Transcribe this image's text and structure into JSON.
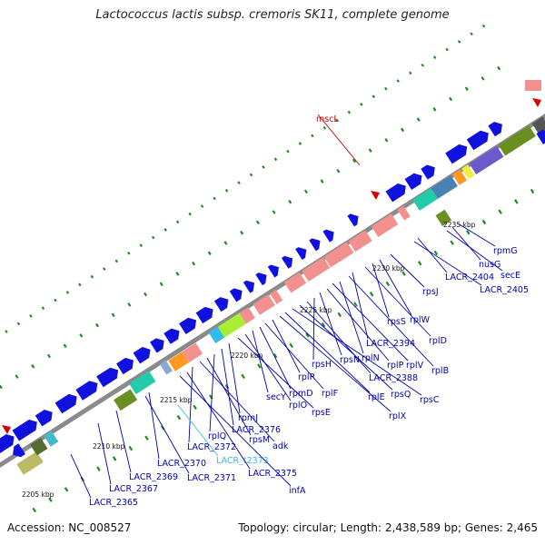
{
  "title": "Lactococcus lactis subsp. cremoris SK11, complete genome",
  "accession": "Accession: NC_008527",
  "summary": "Topology: circular; Length: 2,438,589 bp; Genes: 2,465",
  "ticks": [
    "2205 kbp",
    "2210 kbp",
    "2215 kbp",
    "2220 kbp",
    "2225 kbp",
    "2230 kbp",
    "2235 kbp"
  ],
  "gene_labels": [
    {
      "text": "mscL",
      "color": "#cc0000"
    },
    {
      "text": "rpmG",
      "color": "#0000aa"
    },
    {
      "text": "nusG",
      "color": "#0000aa"
    },
    {
      "text": "secE",
      "color": "#0000aa"
    },
    {
      "text": "LACR_2404",
      "color": "#0000aa"
    },
    {
      "text": "LACR_2405",
      "color": "#0000aa"
    },
    {
      "text": "rpsJ",
      "color": "#0000aa"
    },
    {
      "text": "rplW",
      "color": "#0000aa"
    },
    {
      "text": "rpsS",
      "color": "#0000aa"
    },
    {
      "text": "rplD",
      "color": "#0000aa"
    },
    {
      "text": "LACR_2394",
      "color": "#0000aa"
    },
    {
      "text": "rplB",
      "color": "#0000aa"
    },
    {
      "text": "rplN",
      "color": "#0000aa"
    },
    {
      "text": "rplV",
      "color": "#0000aa"
    },
    {
      "text": "rplP",
      "color": "#0000aa"
    },
    {
      "text": "rpsN",
      "color": "#0000aa"
    },
    {
      "text": "rpsH",
      "color": "#0000aa"
    },
    {
      "text": "LACR_2388",
      "color": "#0000aa"
    },
    {
      "text": "rpsQ",
      "color": "#0000aa"
    },
    {
      "text": "rpsC",
      "color": "#0000aa"
    },
    {
      "text": "rplE",
      "color": "#0000aa"
    },
    {
      "text": "rplX",
      "color": "#0000aa"
    },
    {
      "text": "rplR",
      "color": "#0000aa"
    },
    {
      "text": "rplF",
      "color": "#0000aa"
    },
    {
      "text": "rpmD",
      "color": "#0000aa"
    },
    {
      "text": "secY",
      "color": "#0000aa"
    },
    {
      "text": "rplO",
      "color": "#0000aa"
    },
    {
      "text": "rpsE",
      "color": "#0000aa"
    },
    {
      "text": "rpmJ",
      "color": "#0000aa"
    },
    {
      "text": "LACR_2376",
      "color": "#0000aa"
    },
    {
      "text": "rplQ",
      "color": "#0000aa"
    },
    {
      "text": "rpsM",
      "color": "#0000aa"
    },
    {
      "text": "adk",
      "color": "#0000aa"
    },
    {
      "text": "LACR_2372",
      "color": "#0000aa"
    },
    {
      "text": "LACR_t2373",
      "color": "#33bbee"
    },
    {
      "text": "LACR_2375",
      "color": "#0000aa"
    },
    {
      "text": "infA",
      "color": "#0000aa"
    },
    {
      "text": "LACR_2370",
      "color": "#0000aa"
    },
    {
      "text": "LACR_2371",
      "color": "#0000aa"
    },
    {
      "text": "LACR_2369",
      "color": "#0000aa"
    },
    {
      "text": "LACR_2367",
      "color": "#0000aa"
    },
    {
      "text": "LACR_2365",
      "color": "#0000aa"
    }
  ],
  "colors": {
    "backbone": "#8a8a8a",
    "cds": "#1111dd",
    "rrna_like": "#f29090",
    "trna": "#33bbee",
    "red_feature": "#dd0000",
    "dots": "#228822"
  }
}
